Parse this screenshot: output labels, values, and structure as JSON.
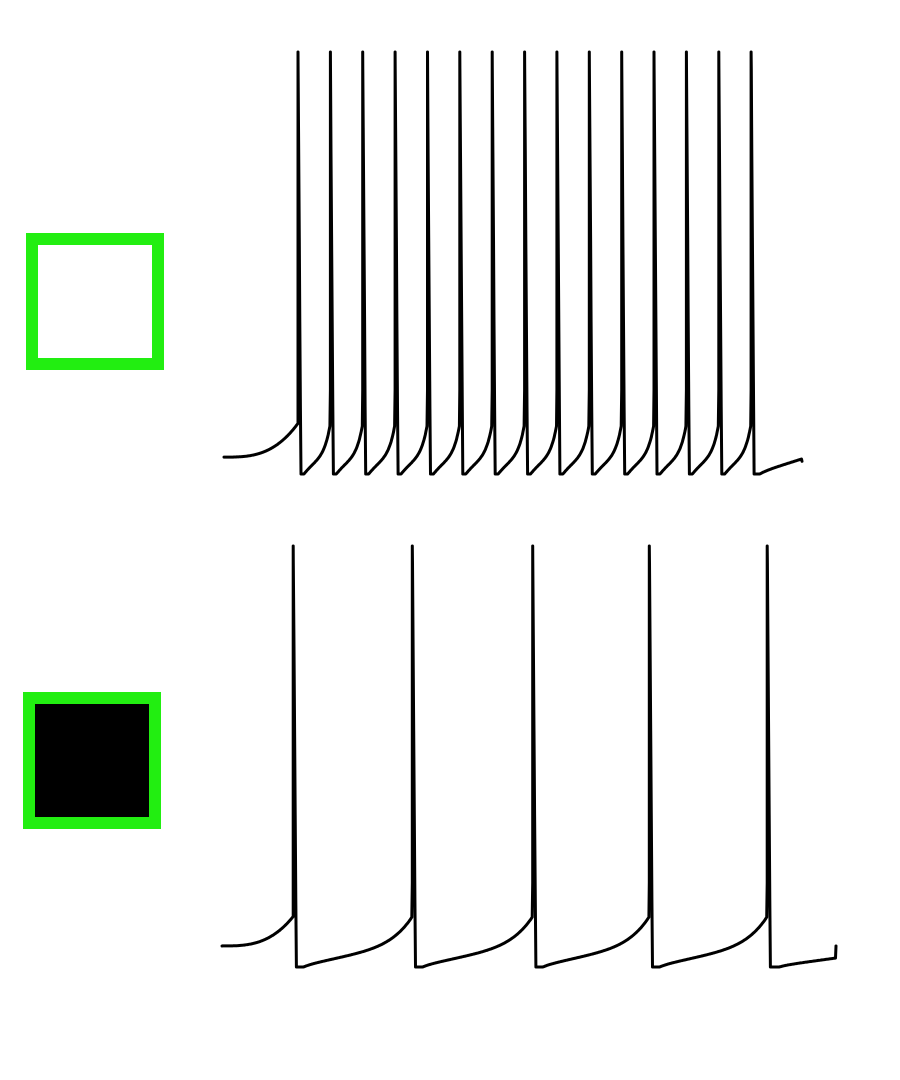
{
  "colors": {
    "background": "#ffffff",
    "trace": "#000000",
    "marker_border": "#22ee11",
    "marker_fill_top": "#ffffff",
    "marker_fill_bottom": "#000000"
  },
  "panels": [
    {
      "marker_icon": "open-square-icon",
      "marker_filled": false
    },
    {
      "marker_icon": "filled-square-icon",
      "marker_filled": true
    }
  ],
  "chart_data": [
    {
      "type": "line",
      "title": "",
      "xlabel": "",
      "ylabel": "",
      "grid": false,
      "xlim": [
        0,
        100
      ],
      "ylim": [
        0,
        1
      ],
      "baseline_start": 0.04,
      "trough": 0.0,
      "peak": 1.0,
      "end_value": 0.03,
      "spike_times": [
        12.8,
        18.4,
        24.0,
        29.6,
        35.2,
        40.8,
        46.4,
        52.0,
        57.6,
        63.2,
        68.8,
        74.4,
        80.0,
        85.6,
        91.2
      ],
      "series": [
        {
          "values_note": ""
        }
      ]
    },
    {
      "type": "line",
      "title": "",
      "xlabel": "",
      "ylabel": "",
      "grid": false,
      "xlim": [
        0,
        100
      ],
      "ylim": [
        0,
        1
      ],
      "baseline_start": 0.05,
      "trough": 0.0,
      "peak": 1.0,
      "end_value": 0.05,
      "spike_times": [
        11.6,
        31.0,
        50.6,
        69.6,
        88.8
      ],
      "series": [
        {
          "values_note": ""
        }
      ]
    }
  ]
}
